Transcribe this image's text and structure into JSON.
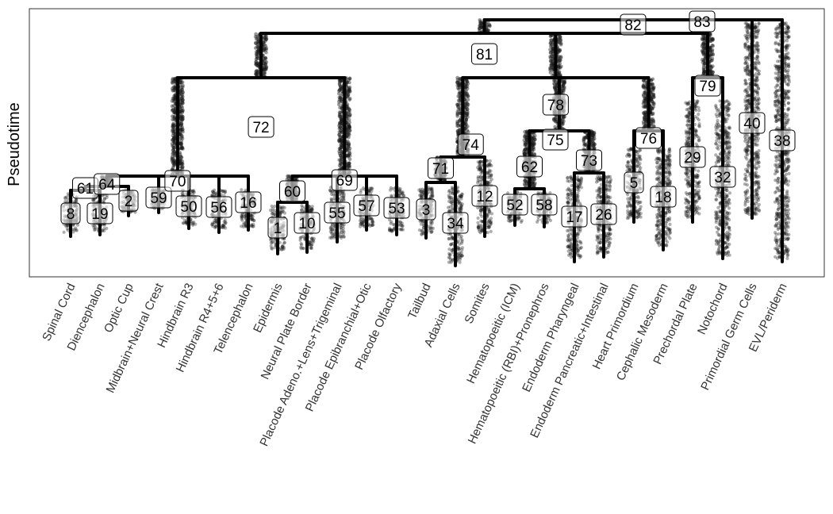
{
  "chart_data": {
    "type": "dendrogram",
    "ylabel": "Pseudotime",
    "xlabel": "",
    "title": "",
    "grid": false,
    "categories": [
      "Spinal Cord",
      "Diencephalon",
      "Optic Cup",
      "Midbrain+Neural Crest",
      "Hindbrain R3",
      "Hindbrain R4+5+6",
      "Telencephalon",
      "Epidermis",
      "Neural Plate Border",
      "Placode Adeno.+Lens+Trigeminal",
      "Placode Epibranchial+Otic",
      "Placode Olfactory",
      "Tailbud",
      "Adaxial Cells",
      "Somites",
      "Hematopoeitic (ICM)",
      "Hematopoeitic (RBI)+Pronephros",
      "Endoderm Pharyngeal",
      "Endoderm Pancreatic+Intestinal",
      "Heart Primordium",
      "Cephalic Mesoderm",
      "Prechordal Plate",
      "Notochord",
      "Primordial Germ Cells",
      "EVL/Periderm"
    ],
    "leaves": [
      {
        "label": "8",
        "category": "Spinal Cord"
      },
      {
        "label": "19",
        "category": "Diencephalon"
      },
      {
        "label": "2",
        "category": "Optic Cup"
      },
      {
        "label": "59",
        "category": "Midbrain+Neural Crest"
      },
      {
        "label": "50",
        "category": "Hindbrain R3"
      },
      {
        "label": "56",
        "category": "Hindbrain R4+5+6"
      },
      {
        "label": "16",
        "category": "Telencephalon"
      },
      {
        "label": "1",
        "category": "Epidermis"
      },
      {
        "label": "10",
        "category": "Neural Plate Border"
      },
      {
        "label": "55",
        "category": "Placode Adeno.+Lens+Trigeminal"
      },
      {
        "label": "57",
        "category": "Placode Epibranchial+Otic"
      },
      {
        "label": "53",
        "category": "Placode Olfactory"
      },
      {
        "label": "3",
        "category": "Tailbud"
      },
      {
        "label": "34",
        "category": "Adaxial Cells"
      },
      {
        "label": "12",
        "category": "Somites"
      },
      {
        "label": "52",
        "category": "Hematopoeitic (ICM)"
      },
      {
        "label": "58",
        "category": "Hematopoeitic (RBI)+Pronephros"
      },
      {
        "label": "17",
        "category": "Endoderm Pharyngeal"
      },
      {
        "label": "26",
        "category": "Endoderm Pancreatic+Intestinal"
      },
      {
        "label": "5",
        "category": "Heart Primordium"
      },
      {
        "label": "18",
        "category": "Cephalic Mesoderm"
      },
      {
        "label": "29",
        "category": "Prechordal Plate"
      },
      {
        "label": "32",
        "category": "Notochord"
      },
      {
        "label": "40",
        "category": "Primordial Germ Cells"
      },
      {
        "label": "38",
        "category": "EVL/Periderm"
      }
    ],
    "internal_nodes": [
      {
        "label": "61",
        "children": [
          "8",
          "19"
        ]
      },
      {
        "label": "64",
        "children": [
          "61",
          "2"
        ]
      },
      {
        "label": "70",
        "children": [
          "64",
          "59",
          "50",
          "56",
          "16"
        ]
      },
      {
        "label": "60",
        "children": [
          "1",
          "10"
        ]
      },
      {
        "label": "69",
        "children": [
          "60",
          "55",
          "57",
          "53"
        ]
      },
      {
        "label": "72",
        "children": [
          "70",
          "69"
        ]
      },
      {
        "label": "71",
        "children": [
          "3",
          "34"
        ]
      },
      {
        "label": "74",
        "children": [
          "71",
          "12"
        ]
      },
      {
        "label": "62",
        "children": [
          "52",
          "58"
        ]
      },
      {
        "label": "73",
        "children": [
          "17",
          "26"
        ]
      },
      {
        "label": "75",
        "children": [
          "62",
          "73"
        ]
      },
      {
        "label": "76",
        "children": [
          "5",
          "18"
        ]
      },
      {
        "label": "78",
        "children": [
          "74",
          "75",
          "76"
        ]
      },
      {
        "label": "79",
        "children": [
          "29",
          "32"
        ]
      },
      {
        "label": "81",
        "children": [
          "72",
          "78",
          "79"
        ]
      },
      {
        "label": "82",
        "children": [
          "81",
          "40"
        ]
      },
      {
        "label": "83",
        "children": [
          "82",
          "38"
        ]
      }
    ],
    "colors": {
      "tree": "#000000",
      "cells": "#1a1a1a",
      "label_bg": "#ffffff"
    }
  }
}
